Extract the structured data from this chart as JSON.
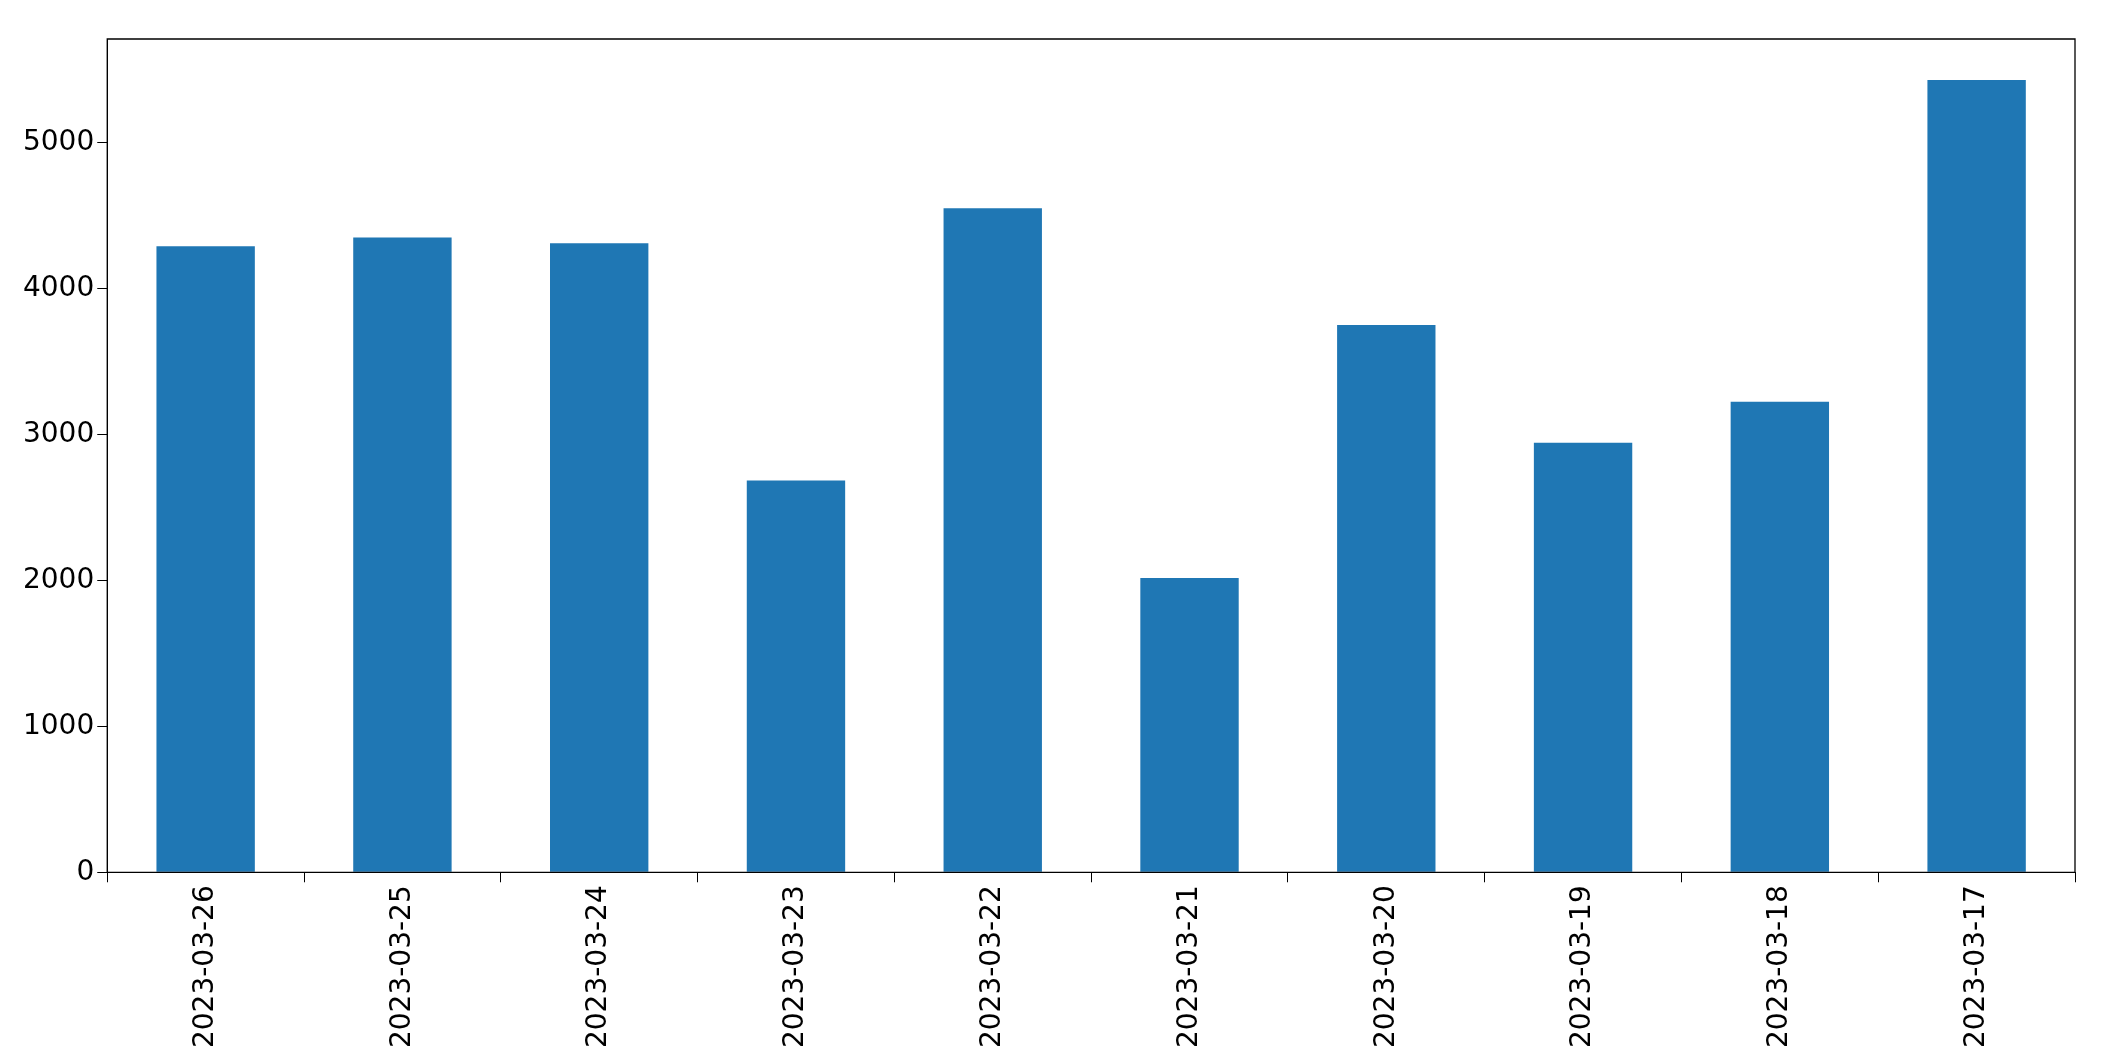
{
  "chart_data": {
    "type": "bar",
    "categories": [
      "2023-03-26",
      "2023-03-25",
      "2023-03-24",
      "2023-03-23",
      "2023-03-22",
      "2023-03-21",
      "2023-03-20",
      "2023-03-19",
      "2023-03-18",
      "2023-03-17"
    ],
    "values": [
      4290,
      4350,
      4310,
      2685,
      4550,
      2016,
      3750,
      2944,
      3224,
      5429
    ],
    "color": "#1f77b4",
    "ylim": [
      0,
      5710
    ],
    "yticks": [
      0,
      1000,
      2000,
      3000,
      4000,
      5000
    ],
    "grid": false,
    "legend": false
  }
}
